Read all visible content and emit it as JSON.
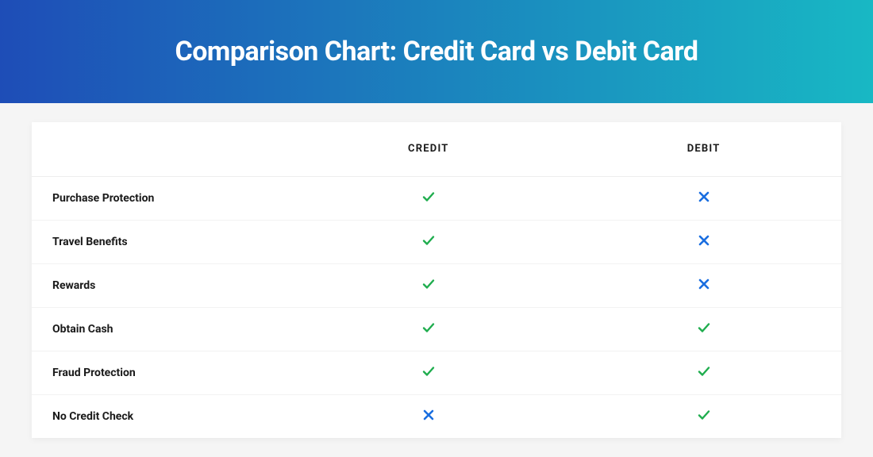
{
  "title": "Comparison Chart: Credit Card vs Debit Card",
  "header_gradient_from": "#1e4db7",
  "header_gradient_to": "#18b8c4",
  "page_background": "#f5f5f5",
  "table_background": "#ffffff",
  "row_border_color": "#f2f2f2",
  "header_row_border_color": "#eeeeee",
  "columns": [
    "CREDIT",
    "DEBIT"
  ],
  "column_header_fontsize": 13,
  "feature_fontsize": 14,
  "title_fontsize": 34,
  "check_color": "#1fad4e",
  "cross_color": "#1a6ee0",
  "features": [
    {
      "label": "Purchase Protection",
      "credit": "check",
      "debit": "cross"
    },
    {
      "label": "Travel Benefits",
      "credit": "check",
      "debit": "cross"
    },
    {
      "label": "Rewards",
      "credit": "check",
      "debit": "cross"
    },
    {
      "label": "Obtain Cash",
      "credit": "check",
      "debit": "check"
    },
    {
      "label": "Fraud Protection",
      "credit": "check",
      "debit": "check"
    },
    {
      "label": "No Credit Check",
      "credit": "cross",
      "debit": "check"
    }
  ]
}
